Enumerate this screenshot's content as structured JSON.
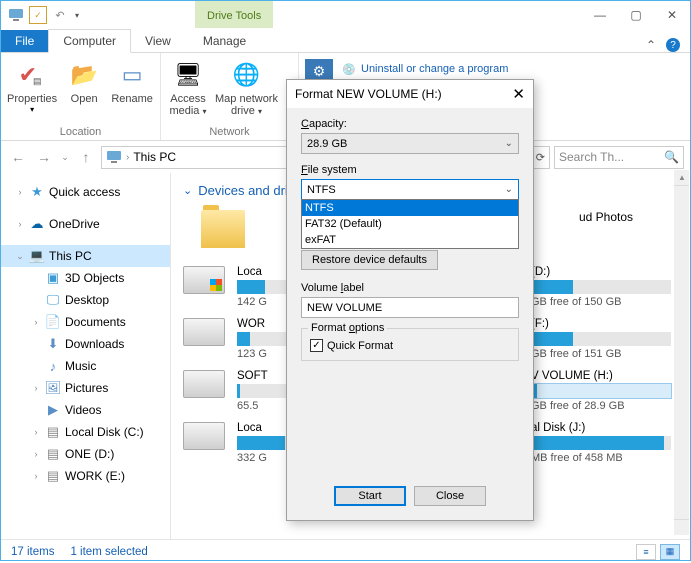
{
  "window": {
    "title": "This PC",
    "tabs": {
      "file": "File",
      "computer": "Computer",
      "view": "View",
      "contextual_header": "Drive Tools",
      "contextual": "Manage"
    }
  },
  "ribbon": {
    "properties": "Properties",
    "open": "Open",
    "rename": "Rename",
    "location": "Location",
    "access_media": "Access",
    "access_media2": "media",
    "map_network": "Map network",
    "map_network2": "drive",
    "network_group": "Network",
    "uninstall": "Uninstall or change a program"
  },
  "address": {
    "location": "This PC",
    "search_placeholder": "Search Th..."
  },
  "tree": {
    "quick_access": "Quick access",
    "onedrive": "OneDrive",
    "this_pc": "This PC",
    "obj3d": "3D Objects",
    "desktop": "Desktop",
    "documents": "Documents",
    "downloads": "Downloads",
    "music": "Music",
    "pictures": "Pictures",
    "videos": "Videos",
    "local_c": "Local Disk (C:)",
    "one_d": "ONE (D:)",
    "work_e": "WORK (E:)"
  },
  "main": {
    "section": "Devices and drives",
    "right_label_photos": "ud Photos",
    "drives": [
      {
        "left_name": "Loca",
        "left_sub": "142 G",
        "right_name": " (D:)",
        "right_sub": "GB free of 150 GB",
        "fill": 55,
        "color": "#26a0da"
      },
      {
        "left_name": "WOR",
        "left_sub": "123 G",
        "right_name": " (F:)",
        "right_sub": "GB free of 151 GB",
        "fill": 25,
        "color": "#26a0da"
      },
      {
        "left_name": "SOFT",
        "left_sub": "65.5",
        "right_name": "V VOLUME (H:)",
        "right_sub": "GB free of 28.9 GB",
        "fill": 5,
        "color": "#26a0da",
        "right_sel": true
      },
      {
        "left_name": "Loca",
        "left_sub": "332 G",
        "right_name": "al Disk (J:)",
        "right_sub": "MB free of 458 MB",
        "fill": 95,
        "color": "#26a0da"
      }
    ]
  },
  "status": {
    "items": "17 items",
    "selected": "1 item selected"
  },
  "dialog": {
    "title": "Format NEW VOLUME (H:)",
    "capacity_label": "Capacity:",
    "capacity_value": "28.9 GB",
    "fs_label": "File system",
    "fs_value": "NTFS",
    "fs_options": [
      "NTFS",
      "FAT32 (Default)",
      "exFAT"
    ],
    "restore": "Restore device defaults",
    "vol_label": "Volume label",
    "vol_value": "NEW VOLUME",
    "format_options": "Format options",
    "quick_format": "Quick Format",
    "start": "Start",
    "close": "Close"
  }
}
